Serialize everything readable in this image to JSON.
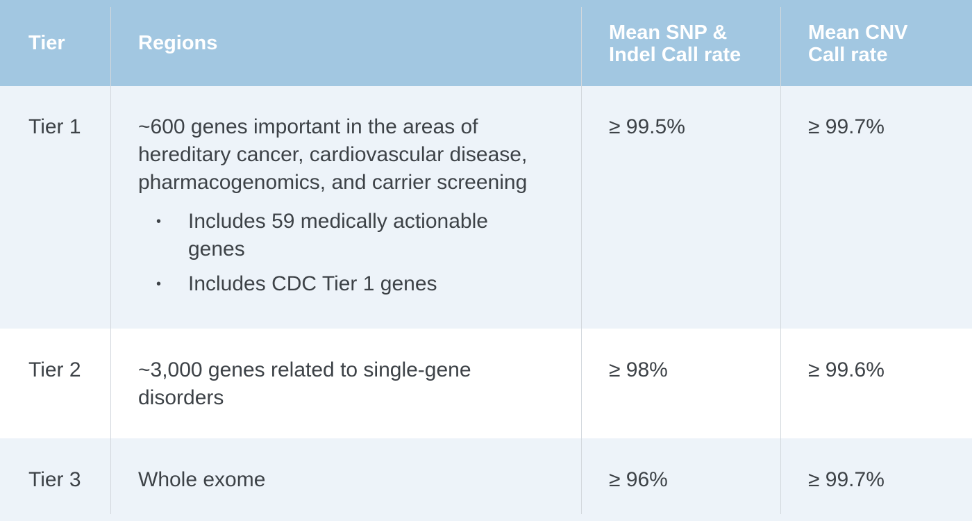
{
  "header": {
    "tier": "Tier",
    "regions": "Regions",
    "snp_line1": "Mean SNP &",
    "snp_line2": "Indel Call rate",
    "cnv_line1": "Mean CNV",
    "cnv_line2": "Call rate"
  },
  "rows": [
    {
      "tier": "Tier 1",
      "region_lines": [
        "~600 genes important in the areas of",
        "hereditary cancer, cardiovascular disease,",
        "pharmacogenomics, and carrier screening"
      ],
      "bullets": [
        {
          "line1": "Includes 59 medically actionable",
          "line2": "genes"
        },
        {
          "line1": "Includes CDC Tier 1 genes"
        }
      ],
      "snp": "≥ 99.5%",
      "cnv": "≥ 99.7%"
    },
    {
      "tier": "Tier 2",
      "region_lines": [
        "~3,000 genes related to single-gene",
        "disorders"
      ],
      "snp": "≥ 98%",
      "cnv": "≥ 99.6%"
    },
    {
      "tier": "Tier 3",
      "region_lines": [
        "Whole exome"
      ],
      "snp": "≥ 96%",
      "cnv": "≥ 99.7%"
    }
  ],
  "bullet_glyph": "•"
}
